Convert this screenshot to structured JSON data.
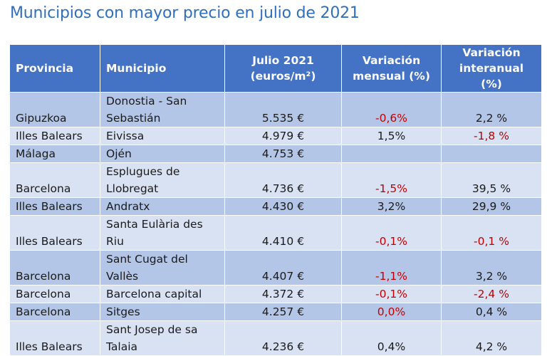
{
  "title": "Municipios con mayor precio en julio de 2021",
  "headers": [
    "Provincia",
    "Municipio",
    "Julio 2021 (euros/m²)",
    "Variación mensual (%)",
    "Variación interanual (%)"
  ],
  "header_lines": [
    [
      "Provincia"
    ],
    [
      "Municipio"
    ],
    [
      "Julio 2021",
      "(euros/m²)"
    ],
    [
      "Variación",
      "mensual (%)"
    ],
    [
      "Variación",
      "interanual (%)"
    ]
  ],
  "rows": [
    {
      "provincia": "Gipuzkoa",
      "municipio": [
        "Donostia - San",
        "Sebastián"
      ],
      "precio": "5.535 €",
      "mensual": "-0,6%",
      "interanual": "2,2 %"
    },
    {
      "provincia": "Illes Balears",
      "municipio": [
        "Eivissa"
      ],
      "precio": "4.979 €",
      "mensual": "1,5%",
      "interanual": "-1,8 %"
    },
    {
      "provincia": "Málaga",
      "municipio": [
        "Ojén"
      ],
      "precio": "4.753 €",
      "mensual": "",
      "interanual": ""
    },
    {
      "provincia": "Barcelona",
      "municipio": [
        "Esplugues de",
        "Llobregat"
      ],
      "precio": "4.736 €",
      "mensual": "-1,5%",
      "interanual": "39,5 %"
    },
    {
      "provincia": "Illes Balears",
      "municipio": [
        "Andratx"
      ],
      "precio": "4.430 €",
      "mensual": "3,2%",
      "interanual": "29,9 %"
    },
    {
      "provincia": "Illes Balears",
      "municipio": [
        "Santa Eulària des",
        "Riu"
      ],
      "precio": "4.410 €",
      "mensual": "-0,1%",
      "interanual": "-0,1 %"
    },
    {
      "provincia": "Barcelona",
      "municipio": [
        "Sant Cugat del",
        "Vallès"
      ],
      "precio": "4.407 €",
      "mensual": "-1,1%",
      "interanual": "3,2 %"
    },
    {
      "provincia": "Barcelona",
      "municipio": [
        "Barcelona capital"
      ],
      "precio": "4.372 €",
      "mensual": "-0,1%",
      "interanual": "-2,4 %"
    },
    {
      "provincia": "Barcelona",
      "municipio": [
        "Sitges"
      ],
      "precio": "4.257 €",
      "mensual": "0,0%",
      "interanual": "0,4 %"
    },
    {
      "provincia": "Illes Balears",
      "municipio": [
        "Sant Josep de sa",
        "Talaia"
      ],
      "precio": "4.236 €",
      "mensual": "0,4%",
      "interanual": "4,2 %"
    }
  ],
  "colors": {
    "header_bg": "#4472c4",
    "row_dark": "#b4c6e7",
    "row_light": "#d9e2f3",
    "negative": "#c00000",
    "title": "#2f6fbd"
  }
}
